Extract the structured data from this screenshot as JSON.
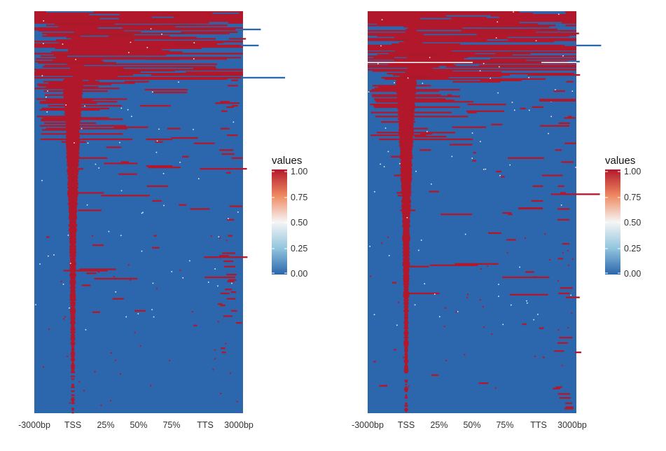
{
  "chart_data": [
    {
      "type": "heatmap",
      "title": "",
      "xlabel": "",
      "ylabel": "",
      "x_ticks": [
        "-3000bp",
        "TSS",
        "25%",
        "50%",
        "75%",
        "TTS",
        "3000bp"
      ],
      "value_range": [
        0,
        1
      ],
      "colorscale": {
        "low": "#2c66ac",
        "mid": "#f5f5f5",
        "high": "#b2182b"
      },
      "legend": {
        "title": "values",
        "ticks": [
          "1.00",
          "0.75",
          "0.50",
          "0.25",
          "0.00"
        ],
        "position": "right"
      }
    },
    {
      "type": "heatmap",
      "title": "",
      "xlabel": "",
      "ylabel": "",
      "x_ticks": [
        "-3000bp",
        "TSS",
        "25%",
        "50%",
        "75%",
        "TTS",
        "3000bp"
      ],
      "value_range": [
        0,
        1
      ],
      "colorscale": {
        "low": "#2c66ac",
        "mid": "#f5f5f5",
        "high": "#b2182b"
      },
      "legend": {
        "title": "values",
        "ticks": [
          "1.00",
          "0.75",
          "0.50",
          "0.25",
          "0.00"
        ],
        "position": "right"
      }
    }
  ]
}
